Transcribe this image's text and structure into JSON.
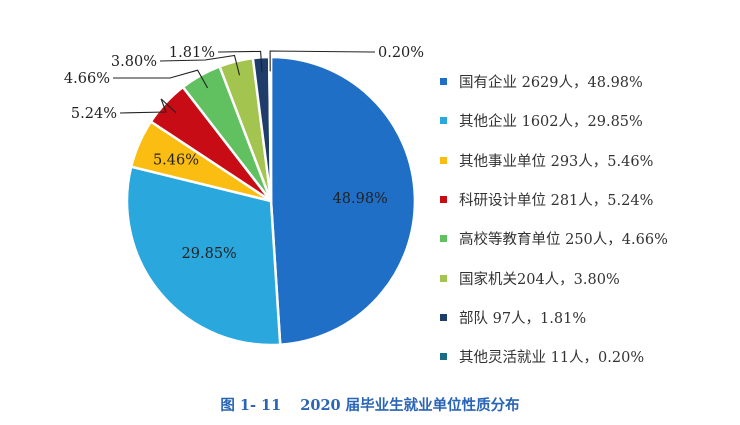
{
  "chart_data": {
    "type": "pie",
    "title": "",
    "slices": [
      {
        "label": "国有企业",
        "count_text": "2629人",
        "percent_text": "48.98%",
        "value": 48.98,
        "color": "#1f6fc7"
      },
      {
        "label": "其他企业",
        "count_text": "1602人",
        "percent_text": "29.85%",
        "value": 29.85,
        "color": "#2aa7dd"
      },
      {
        "label": "其他事业单位",
        "count_text": "293人",
        "percent_text": "5.46%",
        "value": 5.46,
        "color": "#fbbd12"
      },
      {
        "label": "科研设计单位",
        "count_text": "281人",
        "percent_text": "5.24%",
        "value": 5.24,
        "color": "#c80c15"
      },
      {
        "label": "高校等教育单位",
        "count_text": "250人",
        "percent_text": "4.66%",
        "value": 4.66,
        "color": "#61c05f"
      },
      {
        "label": "国家机关",
        "count_text": "204人",
        "percent_text": "3.80%",
        "value": 3.8,
        "color": "#a3c44e"
      },
      {
        "label": "部队",
        "count_text": "97人",
        "percent_text": "1.81%",
        "value": 1.81,
        "color": "#1e3d6b"
      },
      {
        "label": "其他灵活就业",
        "count_text": "11人",
        "percent_text": "0.20%",
        "value": 0.2,
        "color": "#1a6b86"
      }
    ],
    "legend_position": "right"
  },
  "legend": [
    {
      "text": "国有企业 2629人，48.98%",
      "color": "#1f6fc7"
    },
    {
      "text": "其他企业 1602人，29.85%",
      "color": "#2aa7dd"
    },
    {
      "text": "其他事业单位 293人，5.46%",
      "color": "#fbbd12"
    },
    {
      "text": "科研设计单位 281人，5.24%",
      "color": "#c80c15"
    },
    {
      "text": "高校等教育单位 250人，4.66%",
      "color": "#61c05f"
    },
    {
      "text": "国家机关204人，3.80%",
      "color": "#a3c44e"
    },
    {
      "text": "部队 97人，1.81%",
      "color": "#1e3d6b"
    },
    {
      "text": "其他灵活就业 11人，0.20%",
      "color": "#1a6b86"
    }
  ],
  "caption": {
    "figure_number": "图 1- 11",
    "text": "2020 届毕业生就业单位性质分布",
    "color": "#2a64b4"
  }
}
